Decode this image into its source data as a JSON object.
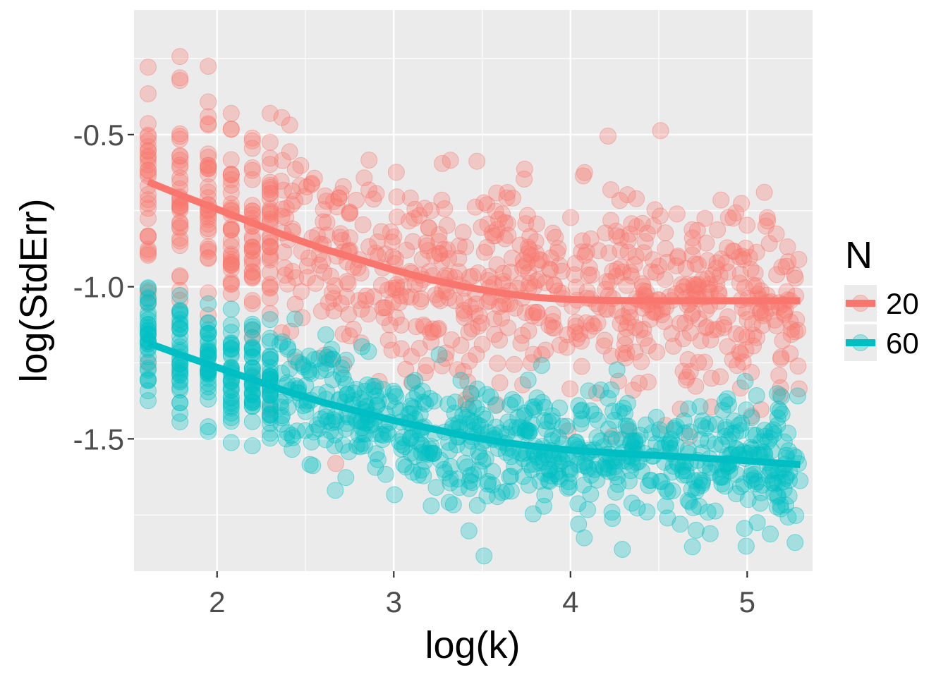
{
  "chart_data": {
    "type": "scatter",
    "xlabel": "log(k)",
    "ylabel": "log(StdErr)",
    "xlim": [
      1.53,
      5.37
    ],
    "ylim": [
      -1.935,
      -0.09
    ],
    "x_ticks": [
      2,
      3,
      4,
      5
    ],
    "y_ticks": [
      -0.5,
      -1.0,
      -1.5
    ],
    "x_tick_labels": [
      "2",
      "3",
      "4",
      "5"
    ],
    "y_tick_labels": [
      "-0.5",
      "-1.0",
      "-1.5"
    ],
    "grid": true,
    "legend": {
      "title": "N",
      "placement": "right",
      "entries": [
        {
          "label": "20",
          "color": "#F8766D"
        },
        {
          "label": "60",
          "color": "#00BFC4"
        }
      ]
    },
    "series": [
      {
        "name": "20",
        "color": "#F8766D",
        "point_alpha": 0.3,
        "scatter_x_range": [
          1.61,
          5.3
        ],
        "scatter_y_center": [
          [
            1.61,
            -0.66
          ],
          [
            2.0,
            -0.76
          ],
          [
            2.5,
            -0.87
          ],
          [
            3.0,
            -0.95
          ],
          [
            3.5,
            -1.0
          ],
          [
            4.0,
            -1.04
          ],
          [
            5.3,
            -1.05
          ]
        ],
        "scatter_spread": 0.17,
        "smooth_x": [
          1.61,
          1.8,
          2.0,
          2.2,
          2.4,
          2.6,
          2.8,
          3.0,
          3.2,
          3.4,
          3.6,
          3.8,
          4.0,
          4.2,
          4.4,
          4.6,
          4.8,
          5.0,
          5.3
        ],
        "smooth_y": [
          -0.655,
          -0.7,
          -0.745,
          -0.79,
          -0.835,
          -0.875,
          -0.91,
          -0.945,
          -0.975,
          -1.0,
          -1.02,
          -1.035,
          -1.042,
          -1.045,
          -1.046,
          -1.046,
          -1.046,
          -1.046,
          -1.046
        ]
      },
      {
        "name": "60",
        "color": "#00BFC4",
        "point_alpha": 0.3,
        "scatter_x_range": [
          1.61,
          5.3
        ],
        "scatter_y_center": [
          [
            1.61,
            -1.18
          ],
          [
            2.0,
            -1.27
          ],
          [
            2.5,
            -1.38
          ],
          [
            3.0,
            -1.46
          ],
          [
            3.5,
            -1.51
          ],
          [
            4.0,
            -1.54
          ],
          [
            5.3,
            -1.58
          ]
        ],
        "scatter_spread": 0.1,
        "smooth_x": [
          1.61,
          1.8,
          2.0,
          2.2,
          2.4,
          2.6,
          2.8,
          3.0,
          3.2,
          3.4,
          3.6,
          3.8,
          4.0,
          4.2,
          4.4,
          4.6,
          4.8,
          5.0,
          5.3
        ],
        "smooth_y": [
          -1.185,
          -1.225,
          -1.265,
          -1.305,
          -1.345,
          -1.38,
          -1.41,
          -1.44,
          -1.465,
          -1.49,
          -1.51,
          -1.525,
          -1.537,
          -1.545,
          -1.552,
          -1.558,
          -1.565,
          -1.572,
          -1.585
        ]
      }
    ],
    "jitter_x_levels": [
      1.61,
      1.79,
      1.95,
      2.08,
      2.2,
      2.3
    ]
  }
}
